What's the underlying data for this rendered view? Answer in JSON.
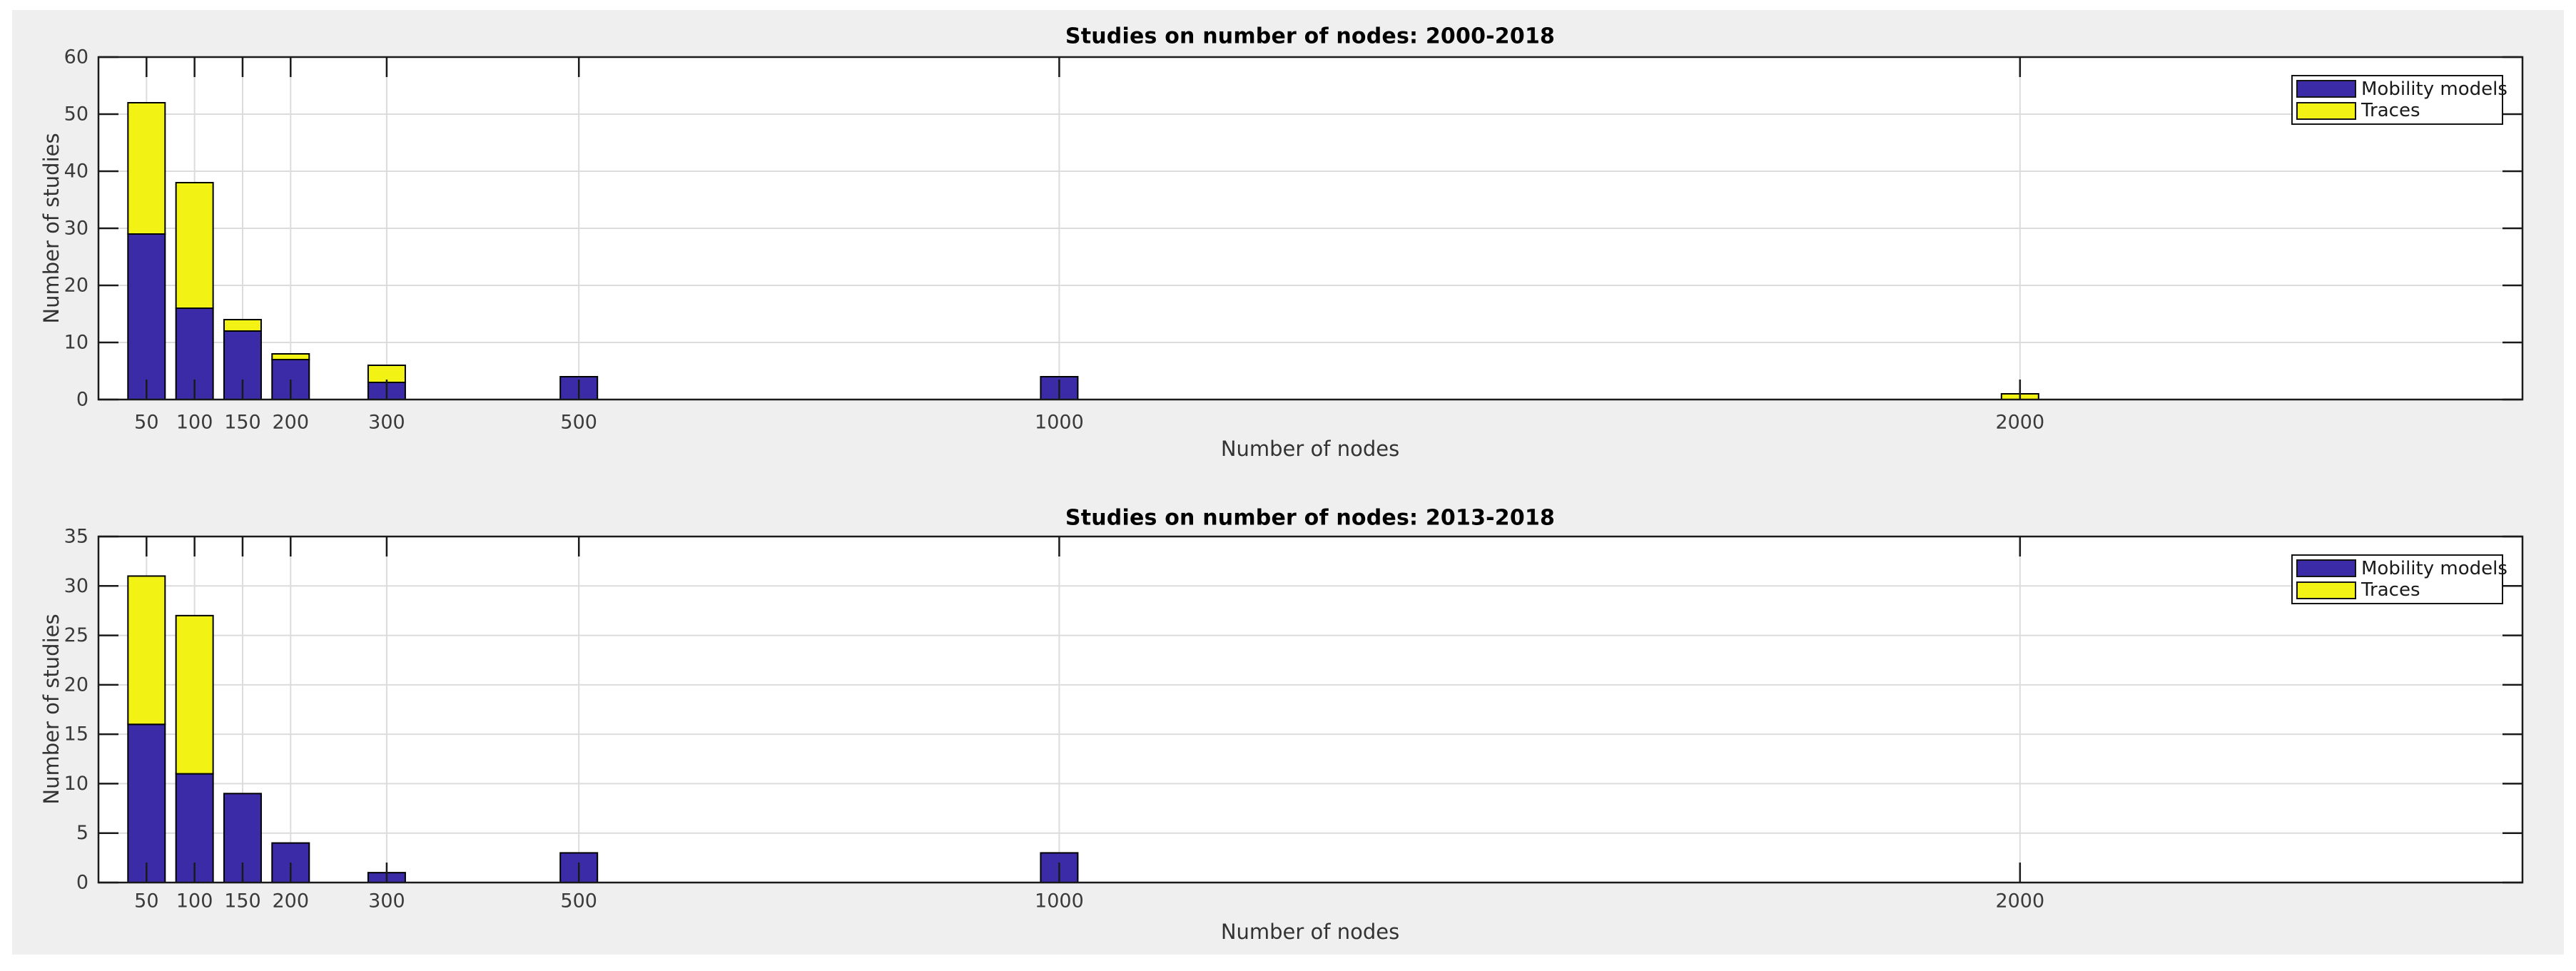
{
  "figure": {
    "background_color": "#EFEFEF",
    "plot_background_color": "#FFFFFF",
    "grid_color": "#DCDCDC",
    "axis_color": "#1A1A1A",
    "tick_label_color": "#3A3A3A",
    "series_colors": {
      "mobility": "#3B2BA7",
      "traces": "#F2F214"
    }
  },
  "legend": {
    "entries": [
      {
        "key": "mobility",
        "label": "Mobility models",
        "color": "#3B2BA7"
      },
      {
        "key": "traces",
        "label": "Traces",
        "color": "#F2F214"
      }
    ],
    "position": "top-right"
  },
  "chart_data": [
    {
      "type": "bar",
      "stacked": true,
      "title": "Studies on number of nodes: 2000-2018",
      "xlabel": "Number of nodes",
      "ylabel": "Number of studies",
      "categories": [
        50,
        100,
        150,
        200,
        300,
        500,
        1000,
        2000
      ],
      "series": [
        {
          "name": "Mobility models",
          "values": [
            29,
            16,
            12,
            7,
            3,
            4,
            4,
            0
          ]
        },
        {
          "name": "Traces",
          "values": [
            23,
            22,
            2,
            1,
            3,
            0,
            0,
            1
          ]
        }
      ],
      "totals": [
        52,
        38,
        14,
        8,
        6,
        4,
        4,
        1
      ],
      "ylim": [
        0,
        60
      ],
      "ytick_step": 10,
      "yticks": [
        0,
        10,
        20,
        30,
        40,
        50,
        60
      ],
      "xlim": [
        0,
        2523
      ],
      "grid": true,
      "legend_position": "top-right"
    },
    {
      "type": "bar",
      "stacked": true,
      "title": "Studies on number of nodes: 2013-2018",
      "xlabel": "Number of nodes",
      "ylabel": "Number of studies",
      "categories": [
        50,
        100,
        150,
        200,
        300,
        500,
        1000,
        2000
      ],
      "series": [
        {
          "name": "Mobility models",
          "values": [
            16,
            11,
            9,
            4,
            1,
            3,
            3,
            0
          ]
        },
        {
          "name": "Traces",
          "values": [
            15,
            16,
            0,
            0,
            0,
            0,
            0,
            0
          ]
        }
      ],
      "totals": [
        31,
        27,
        9,
        4,
        1,
        3,
        3,
        0
      ],
      "ylim": [
        0,
        35
      ],
      "ytick_step": 5,
      "yticks": [
        0,
        5,
        10,
        15,
        20,
        25,
        30,
        35
      ],
      "xlim": [
        0,
        2523
      ],
      "grid": true,
      "legend_position": "top-right"
    }
  ]
}
